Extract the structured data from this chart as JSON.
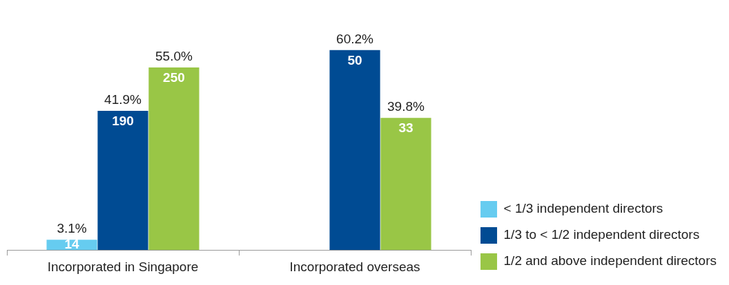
{
  "chart_data": {
    "type": "bar",
    "categories": [
      "Incorporated in Singapore",
      "Incorporated overseas"
    ],
    "series": [
      {
        "name": "< 1/3 independent directors",
        "color": "#66ccf0",
        "values": [
          3.1,
          null
        ],
        "value_labels": [
          "3.1%",
          null
        ]
      },
      {
        "name": "1/3 to < 1/2 independent directors",
        "color": "#004b93",
        "values": [
          41.9,
          60.2
        ],
        "value_labels": [
          "41.9%",
          "60.2%"
        ]
      },
      {
        "name": "1/2 and above independent directors",
        "color": "#99c646",
        "values": [
          55.0,
          39.8
        ],
        "value_labels": [
          "55.0%",
          "39.8%"
        ]
      }
    ],
    "annotations": [
      "14",
      "190",
      "250",
      "50",
      "33"
    ],
    "grid": false,
    "legend": "bottom right"
  }
}
